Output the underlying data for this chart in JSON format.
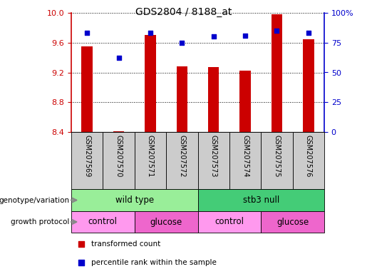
{
  "title": "GDS2804 / 8188_at",
  "samples": [
    "GSM207569",
    "GSM207570",
    "GSM207571",
    "GSM207572",
    "GSM207573",
    "GSM207574",
    "GSM207575",
    "GSM207576"
  ],
  "bar_values": [
    9.55,
    8.41,
    9.7,
    9.28,
    9.27,
    9.22,
    9.98,
    9.65
  ],
  "dot_values": [
    83,
    62,
    83,
    75,
    80,
    81,
    85,
    83
  ],
  "ylim": [
    8.4,
    10.0
  ],
  "y2lim": [
    0,
    100
  ],
  "yticks": [
    8.4,
    8.8,
    9.2,
    9.6,
    10.0
  ],
  "y2ticks": [
    0,
    25,
    50,
    75,
    100
  ],
  "y2ticklabels": [
    "0",
    "25",
    "50",
    "75",
    "100%"
  ],
  "bar_color": "#CC0000",
  "dot_color": "#0000CC",
  "bar_bottom": 8.4,
  "bar_width": 0.35,
  "genotype_groups": [
    {
      "label": "wild type",
      "start": 0,
      "end": 4,
      "color": "#99EE99"
    },
    {
      "label": "stb3 null",
      "start": 4,
      "end": 8,
      "color": "#44CC77"
    }
  ],
  "protocol_groups": [
    {
      "label": "control",
      "start": 0,
      "end": 2,
      "color": "#FF99EE"
    },
    {
      "label": "glucose",
      "start": 2,
      "end": 4,
      "color": "#EE66CC"
    },
    {
      "label": "control",
      "start": 4,
      "end": 6,
      "color": "#FF99EE"
    },
    {
      "label": "glucose",
      "start": 6,
      "end": 8,
      "color": "#EE66CC"
    }
  ],
  "legend_items": [
    {
      "label": "transformed count",
      "color": "#CC0000"
    },
    {
      "label": "percentile rank within the sample",
      "color": "#0000CC"
    }
  ],
  "left_label1": "genotype/variation",
  "left_label2": "growth protocol",
  "background_color": "#FFFFFF",
  "tick_color_left": "#CC0000",
  "tick_color_right": "#0000CC",
  "xlabel_area_color": "#CCCCCC",
  "arrow_color": "#888888"
}
